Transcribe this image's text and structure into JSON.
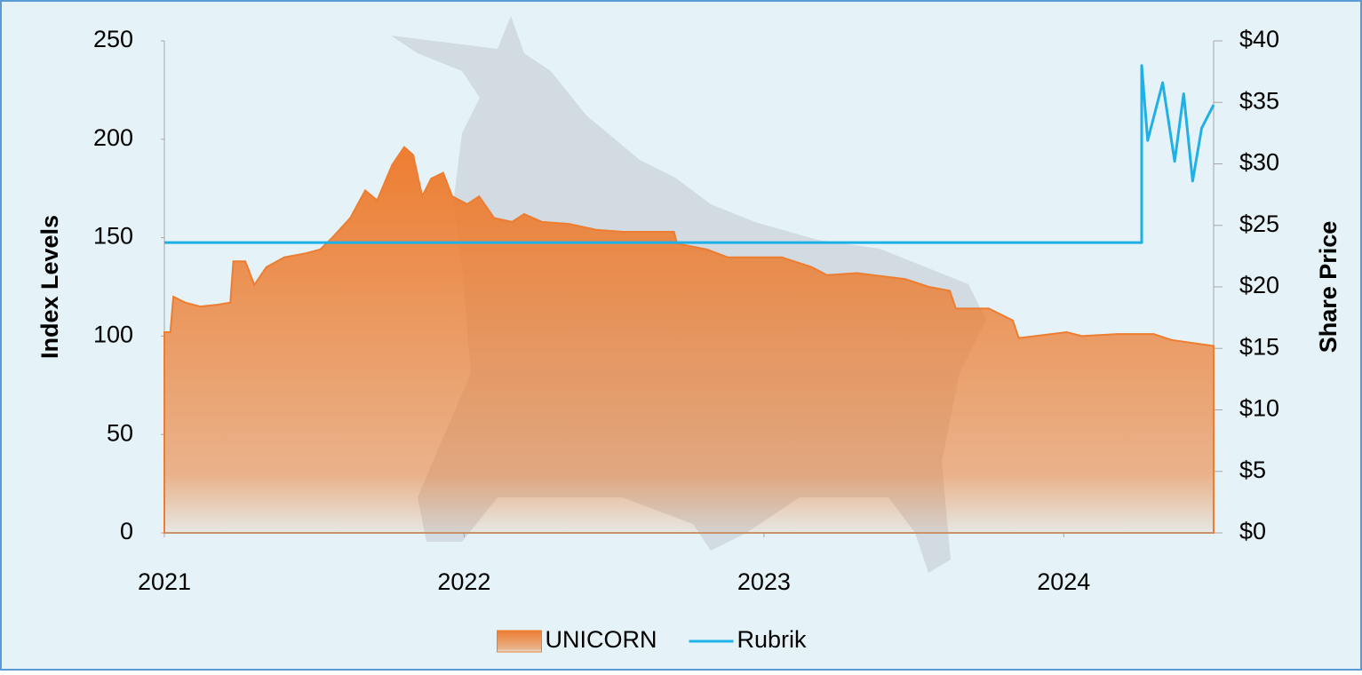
{
  "chart_data": {
    "type": "area",
    "y_label": "Index Levels",
    "y2_label": "Share Price",
    "xlim": [
      2021,
      2024.5
    ],
    "xticks": [
      2021,
      2022,
      2023,
      2024
    ],
    "ylim": [
      0,
      250
    ],
    "yticks": [
      0,
      50,
      100,
      150,
      200,
      250
    ],
    "y2lim": [
      0,
      40
    ],
    "y2ticks": [
      {
        "value": 0,
        "label": "$0"
      },
      {
        "value": 5,
        "label": "$5"
      },
      {
        "value": 10,
        "label": "$10"
      },
      {
        "value": 15,
        "label": "$15"
      },
      {
        "value": 20,
        "label": "$20"
      },
      {
        "value": 25,
        "label": "$25"
      },
      {
        "value": 30,
        "label": "$30"
      },
      {
        "value": 35,
        "label": "$35"
      },
      {
        "value": 40,
        "label": "$40"
      }
    ],
    "legend": "bottom",
    "series": [
      {
        "name": "UNICORN",
        "color": "#ed7d31",
        "style": "area",
        "x": [
          2021.0,
          2021.02,
          2021.03,
          2021.07,
          2021.12,
          2021.18,
          2021.22,
          2021.23,
          2021.27,
          2021.3,
          2021.34,
          2021.4,
          2021.47,
          2021.52,
          2021.56,
          2021.62,
          2021.67,
          2021.71,
          2021.76,
          2021.8,
          2021.83,
          2021.86,
          2021.89,
          2021.93,
          2021.96,
          2022.01,
          2022.05,
          2022.1,
          2022.16,
          2022.2,
          2022.26,
          2022.35,
          2022.44,
          2022.53,
          2022.61,
          2022.7,
          2022.71,
          2022.81,
          2022.88,
          2023.06,
          2023.16,
          2023.21,
          2023.31,
          2023.47,
          2023.55,
          2023.62,
          2023.64,
          2023.75,
          2023.83,
          2023.85,
          2024.01,
          2024.06,
          2024.18,
          2024.3,
          2024.36,
          2024.5
        ],
        "values": [
          102,
          102,
          120,
          117,
          115,
          116,
          117,
          138,
          138,
          126,
          135,
          140,
          142,
          144,
          150,
          160,
          174,
          169,
          187,
          196,
          192,
          171,
          180,
          183,
          171,
          167,
          171,
          160,
          158,
          162,
          158,
          157,
          154,
          153,
          153,
          153,
          147,
          144,
          140,
          140,
          135,
          131,
          132,
          129,
          125,
          123,
          114,
          114,
          108,
          99,
          102,
          100,
          101,
          101,
          98,
          95
        ]
      },
      {
        "name": "Rubrik",
        "color": "#1fb0e8",
        "style": "line",
        "axis": "y2",
        "x": [
          2021.0,
          2024.26,
          2024.26,
          2024.28,
          2024.33,
          2024.37,
          2024.4,
          2024.43,
          2024.46,
          2024.5
        ],
        "values": [
          23.6,
          23.6,
          38.0,
          31.9,
          36.6,
          30.2,
          35.7,
          28.6,
          32.9,
          34.8
        ]
      }
    ]
  }
}
